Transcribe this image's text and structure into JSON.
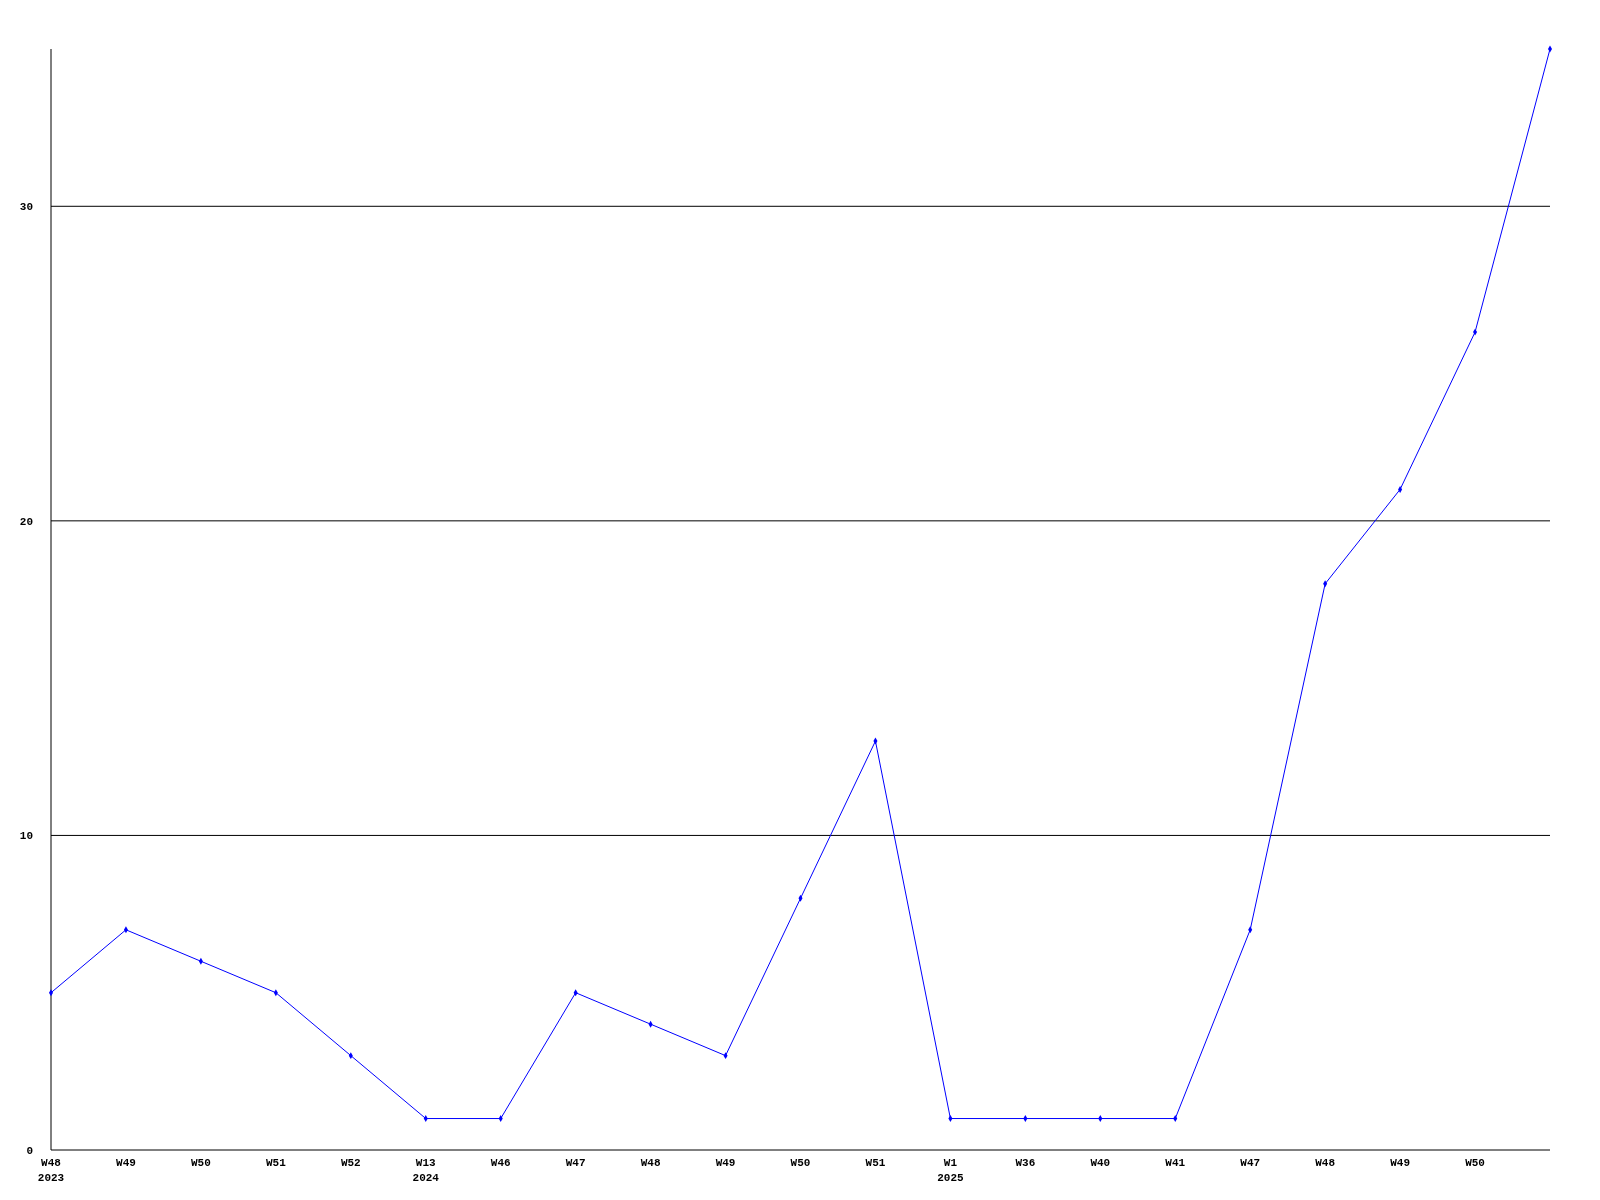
{
  "chart_data": {
    "type": "line",
    "categories": [
      "W48\n2023",
      "W49",
      "W50",
      "W51",
      "W52",
      "W13\n2024",
      "W46",
      "W47",
      "W48",
      "W49",
      "W50",
      "W51",
      "W1\n2025",
      "W36",
      "W40",
      "W41",
      "W47",
      "W48",
      "W49",
      "W50",
      null
    ],
    "series": [
      {
        "color": "#0000ff",
        "values": [
          5,
          7,
          6,
          5,
          3,
          1,
          1,
          5,
          4,
          3,
          8,
          13,
          1,
          1,
          1,
          1,
          7,
          18,
          21,
          26,
          35
        ]
      }
    ],
    "ylim": [
      0,
      35
    ],
    "yticks": [
      0,
      10,
      20,
      30
    ],
    "grid": "y",
    "marker": "diamond"
  }
}
